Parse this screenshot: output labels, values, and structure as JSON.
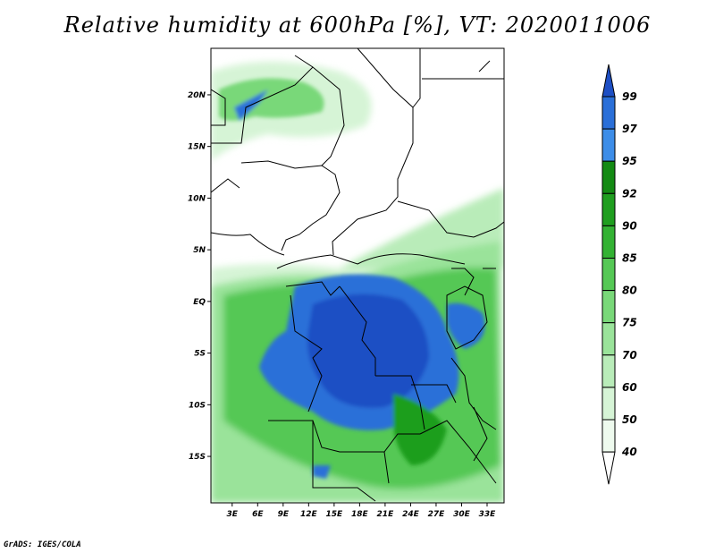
{
  "title": "Relative humidity at 600hPa [%], VT: 2020011006",
  "credit": "GrADS: IGES/COLA",
  "map": {
    "lat_labels": [
      {
        "label": "20N",
        "lat": 20
      },
      {
        "label": "15N",
        "lat": 15
      },
      {
        "label": "10N",
        "lat": 10
      },
      {
        "label": "5N",
        "lat": 5
      },
      {
        "label": "EQ",
        "lat": 0
      },
      {
        "label": "5S",
        "lat": -5
      },
      {
        "label": "10S",
        "lat": -10
      },
      {
        "label": "15S",
        "lat": -15
      }
    ],
    "lon_labels": [
      {
        "label": "3E",
        "lon": 3
      },
      {
        "label": "6E",
        "lon": 6
      },
      {
        "label": "9E",
        "lon": 9
      },
      {
        "label": "12E",
        "lon": 12
      },
      {
        "label": "15E",
        "lon": 15
      },
      {
        "label": "18E",
        "lon": 18
      },
      {
        "label": "21E",
        "lon": 21
      },
      {
        "label": "24E",
        "lon": 24
      },
      {
        "label": "27E",
        "lon": 27
      },
      {
        "label": "30E",
        "lon": 30
      },
      {
        "label": "33E",
        "lon": 33
      }
    ],
    "lon_range": [
      0.5,
      35
    ],
    "lat_range": [
      -19.5,
      24.5
    ]
  },
  "colorbar": {
    "levels": [
      "99",
      "97",
      "95",
      "92",
      "90",
      "85",
      "80",
      "75",
      "70",
      "60",
      "50",
      "40"
    ],
    "colors": [
      "#1e4fc4",
      "#2a6fd8",
      "#3d8de8",
      "#138a13",
      "#1f9e1f",
      "#33b233",
      "#55c855",
      "#79d879",
      "#9ae39a",
      "#b9ecb9",
      "#d6f4d6",
      "#eefaee"
    ]
  }
}
